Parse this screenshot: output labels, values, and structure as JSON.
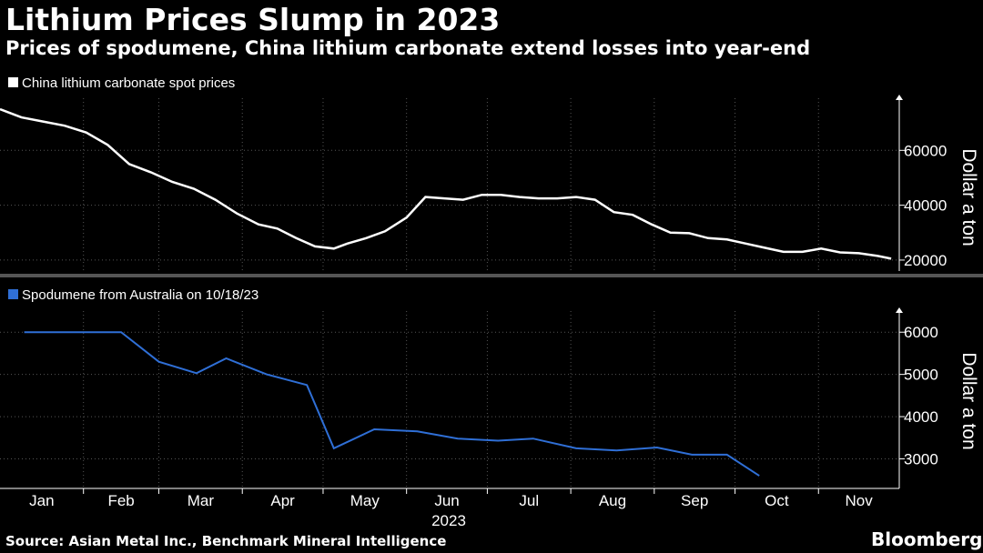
{
  "header": {
    "title": "Lithium Prices Slump in 2023",
    "subtitle": "Prices of spodumene, China lithium carbonate extend losses into year-end"
  },
  "footer": {
    "source": "Source: Asian Metal Inc., Benchmark Mineral Intelligence",
    "brand": "Bloomberg"
  },
  "colors": {
    "background": "#000000",
    "carbonate_line": "#ffffff",
    "spodumene_line": "#2f6fd6",
    "grid": "#555555"
  },
  "chart_data": [
    {
      "type": "line",
      "legend": "top-left",
      "grid": true,
      "xlim": [
        "2023-01-01",
        "2023-12-01"
      ],
      "ylim": [
        16000,
        79000
      ],
      "yticks": [
        20000,
        40000,
        60000
      ],
      "ylabel": "Dollar a ton",
      "series": [
        {
          "name": "China lithium carbonate spot prices",
          "color": "#ffffff",
          "x": [
            "2023-01-01",
            "2023-01-09",
            "2023-01-17",
            "2023-01-25",
            "2023-02-02",
            "2023-02-10",
            "2023-02-18",
            "2023-02-26",
            "2023-03-06",
            "2023-03-14",
            "2023-03-22",
            "2023-03-30",
            "2023-04-07",
            "2023-04-14",
            "2023-04-21",
            "2023-04-28",
            "2023-05-05",
            "2023-05-10",
            "2023-05-17",
            "2023-05-24",
            "2023-06-01",
            "2023-06-08",
            "2023-06-15",
            "2023-06-22",
            "2023-06-29",
            "2023-07-06",
            "2023-07-13",
            "2023-07-20",
            "2023-07-27",
            "2023-08-03",
            "2023-08-10",
            "2023-08-17",
            "2023-08-24",
            "2023-08-31",
            "2023-09-07",
            "2023-09-14",
            "2023-09-21",
            "2023-09-28",
            "2023-10-05",
            "2023-10-12",
            "2023-10-19",
            "2023-10-26",
            "2023-11-02",
            "2023-11-09",
            "2023-11-16",
            "2023-11-23",
            "2023-11-28"
          ],
          "y": [
            75000,
            72000,
            70500,
            69000,
            66500,
            62000,
            55000,
            52000,
            48500,
            46000,
            42000,
            37000,
            33000,
            31500,
            28000,
            25000,
            24200,
            26000,
            28000,
            30500,
            35500,
            43000,
            42500,
            42000,
            43800,
            43800,
            43000,
            42500,
            42500,
            43000,
            42000,
            37500,
            36500,
            33000,
            30000,
            29800,
            28000,
            27500,
            26000,
            24500,
            23000,
            23000,
            24200,
            22800,
            22500,
            21500,
            20500
          ]
        }
      ]
    },
    {
      "type": "line",
      "legend": "top-left",
      "grid": true,
      "xlim": [
        "2023-01-01",
        "2023-12-01"
      ],
      "ylim": [
        2300,
        6500
      ],
      "yticks": [
        3000,
        4000,
        5000,
        6000
      ],
      "ylabel": "Dollar a ton",
      "xticks": [
        "Jan",
        "Feb",
        "Mar",
        "Apr",
        "May",
        "Jun",
        "Jul",
        "Aug",
        "Sep",
        "Oct",
        "Nov"
      ],
      "xlabel": "2023",
      "series": [
        {
          "name": "Spodumene from Australia on 10/18/23",
          "color": "#2f6fd6",
          "x": [
            "2023-01-10",
            "2023-01-25",
            "2023-02-15",
            "2023-03-01",
            "2023-03-15",
            "2023-03-26",
            "2023-04-10",
            "2023-04-25",
            "2023-05-05",
            "2023-05-20",
            "2023-06-05",
            "2023-06-20",
            "2023-07-05",
            "2023-07-18",
            "2023-08-03",
            "2023-08-18",
            "2023-09-02",
            "2023-09-15",
            "2023-09-28",
            "2023-10-10"
          ],
          "y": [
            6000,
            6000,
            6000,
            5300,
            5030,
            5380,
            5000,
            4750,
            3250,
            3700,
            3650,
            3480,
            3430,
            3480,
            3250,
            3200,
            3270,
            3100,
            3100,
            2600
          ]
        }
      ]
    }
  ]
}
